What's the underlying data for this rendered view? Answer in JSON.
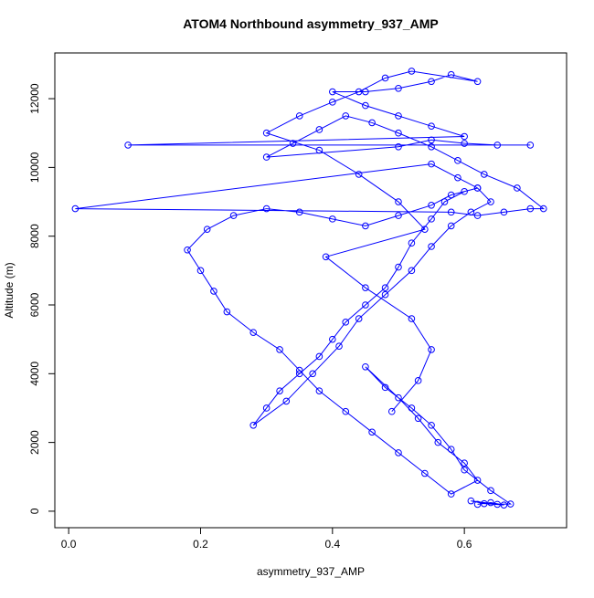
{
  "chart_data": {
    "type": "line",
    "title": "ATOM4 Northbound asymmetry_937_AMP",
    "x_label": "asymmetry_937_AMP",
    "y_label": "Altitude (m)",
    "color": "#0000ff",
    "xlim": [
      -0.021,
      0.755
    ],
    "ylim": [
      -480,
      13330
    ],
    "xticks": [
      {
        "value": 0,
        "label": "0.0"
      },
      0.2,
      0.4,
      0.6
    ],
    "yticks": [
      0,
      2000,
      4000,
      6000,
      8000,
      10000,
      12000
    ],
    "x": [
      0.62,
      0.64,
      0.66,
      0.63,
      0.61,
      0.65,
      0.67,
      0.64,
      0.6,
      0.58,
      0.55,
      0.52,
      0.48,
      0.45,
      0.5,
      0.53,
      0.56,
      0.6,
      0.62,
      0.58,
      0.54,
      0.5,
      0.46,
      0.42,
      0.38,
      0.35,
      0.32,
      0.28,
      0.24,
      0.22,
      0.2,
      0.18,
      0.21,
      0.25,
      0.3,
      0.35,
      0.4,
      0.45,
      0.5,
      0.55,
      0.58,
      0.62,
      0.6,
      0.57,
      0.55,
      0.52,
      0.5,
      0.48,
      0.45,
      0.42,
      0.4,
      0.38,
      0.35,
      0.32,
      0.3,
      0.28,
      0.33,
      0.37,
      0.41,
      0.44,
      0.48,
      0.52,
      0.55,
      0.58,
      0.61,
      0.64,
      0.62,
      0.59,
      0.55,
      0.01,
      0.58,
      0.62,
      0.66,
      0.7,
      0.72,
      0.68,
      0.63,
      0.59,
      0.55,
      0.5,
      0.46,
      0.42,
      0.38,
      0.34,
      0.3,
      0.5,
      0.55,
      0.6,
      0.65,
      0.7,
      0.09,
      0.6,
      0.55,
      0.5,
      0.45,
      0.4,
      0.45,
      0.5,
      0.55,
      0.58,
      0.62,
      0.52,
      0.48,
      0.44,
      0.4,
      0.35,
      0.3,
      0.38,
      0.44,
      0.5,
      0.54,
      0.39,
      0.45,
      0.52,
      0.55,
      0.53,
      0.49
    ],
    "values": [
      200,
      250,
      180,
      220,
      300,
      200,
      210,
      600,
      1200,
      1800,
      2500,
      3000,
      3600,
      4200,
      3300,
      2700,
      2000,
      1400,
      900,
      500,
      1100,
      1700,
      2300,
      2900,
      3500,
      4100,
      4700,
      5200,
      5800,
      6400,
      7000,
      7600,
      8200,
      8600,
      8800,
      8700,
      8500,
      8300,
      8600,
      8900,
      9200,
      9400,
      9300,
      9000,
      8500,
      7800,
      7100,
      6500,
      6000,
      5500,
      5000,
      4500,
      4000,
      3500,
      3000,
      2500,
      3200,
      4000,
      4800,
      5600,
      6300,
      7000,
      7700,
      8300,
      8700,
      9000,
      9400,
      9700,
      10100,
      8800,
      8700,
      8600,
      8700,
      8800,
      8800,
      9400,
      9800,
      10200,
      10600,
      11000,
      11300,
      11500,
      11100,
      10700,
      10300,
      10600,
      10800,
      10700,
      10650,
      10650,
      10650,
      10900,
      11200,
      11500,
      11800,
      12200,
      12200,
      12300,
      12500,
      12700,
      12500,
      12800,
      12600,
      12200,
      11900,
      11500,
      11000,
      10500,
      9800,
      9000,
      8200,
      7400,
      6500,
      5600,
      4700,
      3800,
      2900
    ]
  }
}
